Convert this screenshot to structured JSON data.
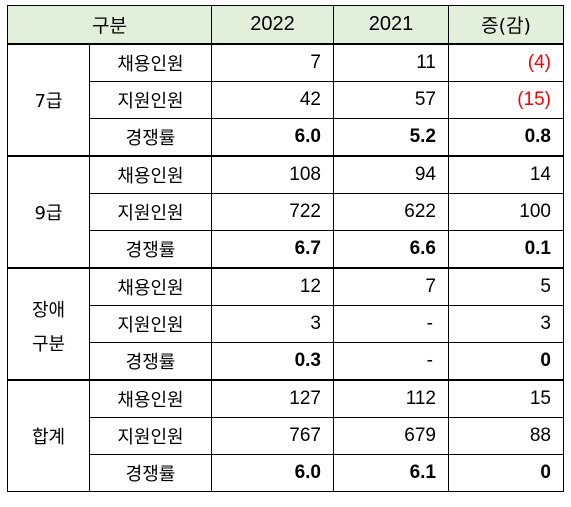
{
  "headers": {
    "category": "구분",
    "y2022": "2022",
    "y2021": "2021",
    "change": "증(감)"
  },
  "groups": [
    {
      "name": "7급",
      "rows": [
        {
          "label": "채용인원",
          "y2022": "7",
          "y2021": "11",
          "change": "(4)"
        },
        {
          "label": "지원인원",
          "y2022": "42",
          "y2021": "57",
          "change": "(15)"
        },
        {
          "label": "경쟁률",
          "y2022": "6.0",
          "y2021": "5.2",
          "change": "0.8"
        }
      ]
    },
    {
      "name": "9급",
      "rows": [
        {
          "label": "채용인원",
          "y2022": "108",
          "y2021": "94",
          "change": "14"
        },
        {
          "label": "지원인원",
          "y2022": "722",
          "y2021": "622",
          "change": "100"
        },
        {
          "label": "경쟁률",
          "y2022": "6.7",
          "y2021": "6.6",
          "change": "0.1"
        }
      ]
    },
    {
      "name_line1": "장애",
      "name_line2": "구분",
      "rows": [
        {
          "label": "채용인원",
          "y2022": "12",
          "y2021": "7",
          "change": "5"
        },
        {
          "label": "지원인원",
          "y2022": "3",
          "y2021": "-",
          "change": "3"
        },
        {
          "label": "경쟁률",
          "y2022": "0.3",
          "y2021": "-",
          "change": "0"
        }
      ]
    },
    {
      "name": "합계",
      "rows": [
        {
          "label": "채용인원",
          "y2022": "127",
          "y2021": "112",
          "change": "15"
        },
        {
          "label": "지원인원",
          "y2022": "767",
          "y2021": "679",
          "change": "88"
        },
        {
          "label": "경쟁률",
          "y2022": "6.0",
          "y2021": "6.1",
          "change": "0"
        }
      ]
    }
  ],
  "colors": {
    "header_bg": "#e2efda",
    "negative": "#ff0000"
  }
}
